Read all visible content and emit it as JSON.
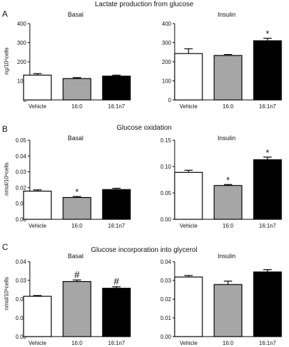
{
  "sections": [
    {
      "letter": "A",
      "title": "Lactate production from glucose",
      "ylabel": "ng/10⁶cells"
    },
    {
      "letter": "B",
      "title": "Glucose oxidation",
      "ylabel": "nmol/10⁶cells"
    },
    {
      "letter": "C",
      "title": "Glucose incorporation into glycerol",
      "ylabel": "nmol/10⁶cells"
    }
  ],
  "colors": {
    "Vehicle": "#ffffff",
    "16:0": "#a6a6a6",
    "16:1n7": "#000000"
  },
  "chart_data": [
    {
      "type": "bar",
      "section": "A",
      "title": "Basal",
      "categories": [
        "Vehicle",
        "16:0",
        "16:1n7"
      ],
      "values": [
        130,
        112,
        125
      ],
      "errors": [
        8,
        5,
        5
      ],
      "annotations": [
        "",
        "",
        ""
      ],
      "ylim": [
        0,
        400
      ],
      "yticks": [
        0,
        100,
        200,
        300,
        400
      ],
      "ytick_labels": [
        "0",
        "100",
        "200",
        "300",
        "400"
      ]
    },
    {
      "type": "bar",
      "section": "A",
      "title": "Insulin",
      "categories": [
        "Vehicle",
        "16:0",
        "16:1n7"
      ],
      "values": [
        243,
        233,
        310
      ],
      "errors": [
        25,
        5,
        13
      ],
      "annotations": [
        "",
        "",
        "*"
      ],
      "ylim": [
        0,
        400
      ],
      "yticks": [
        0,
        100,
        200,
        300,
        400
      ],
      "ytick_labels": [
        "0",
        "100",
        "200",
        "300",
        "400"
      ]
    },
    {
      "type": "bar",
      "section": "B",
      "title": "Basal",
      "categories": [
        "Vehicle",
        "16:0",
        "16:1n7"
      ],
      "values": [
        0.0178,
        0.0138,
        0.0188
      ],
      "errors": [
        0.0008,
        0.0006,
        0.0008
      ],
      "annotations": [
        "",
        "*",
        ""
      ],
      "ylim": [
        0,
        0.05
      ],
      "yticks": [
        0,
        0.01,
        0.02,
        0.03,
        0.04,
        0.05
      ],
      "ytick_labels": [
        "0.00",
        "0.01",
        "0.02",
        "0.03",
        "0.04",
        "0.05"
      ]
    },
    {
      "type": "bar",
      "section": "B",
      "title": "Insulin",
      "categories": [
        "Vehicle",
        "16:0",
        "16:1n7"
      ],
      "values": [
        0.089,
        0.064,
        0.113
      ],
      "errors": [
        0.004,
        0.002,
        0.005
      ],
      "annotations": [
        "",
        "*",
        "*"
      ],
      "ylim": [
        0,
        0.15
      ],
      "yticks": [
        0,
        0.05,
        0.1,
        0.15
      ],
      "ytick_labels": [
        "0.00",
        "0.05",
        "0.10",
        "0.15"
      ]
    },
    {
      "type": "bar",
      "section": "C",
      "title": "Basal",
      "categories": [
        "Vehicle",
        "16:0",
        "16:1n7"
      ],
      "values": [
        0.0215,
        0.0294,
        0.0258
      ],
      "errors": [
        0.0004,
        0.0008,
        0.0008
      ],
      "annotations": [
        "",
        "#",
        "#"
      ],
      "ylim": [
        0,
        0.04
      ],
      "yticks": [
        0,
        0.01,
        0.02,
        0.03,
        0.04
      ],
      "ytick_labels": [
        "0.00",
        "0.01",
        "0.02",
        "0.03",
        "0.04"
      ]
    },
    {
      "type": "bar",
      "section": "C",
      "title": "Insulin",
      "categories": [
        "Vehicle",
        "16:0",
        "16:1n7"
      ],
      "values": [
        0.0318,
        0.0278,
        0.0345
      ],
      "errors": [
        0.0008,
        0.0018,
        0.0012
      ],
      "annotations": [
        "",
        "",
        ""
      ],
      "ylim": [
        0,
        0.04
      ],
      "yticks": [
        0,
        0.01,
        0.02,
        0.03,
        0.04
      ],
      "ytick_labels": [
        "0.00",
        "0.01",
        "0.02",
        "0.03",
        "0.04"
      ]
    }
  ]
}
